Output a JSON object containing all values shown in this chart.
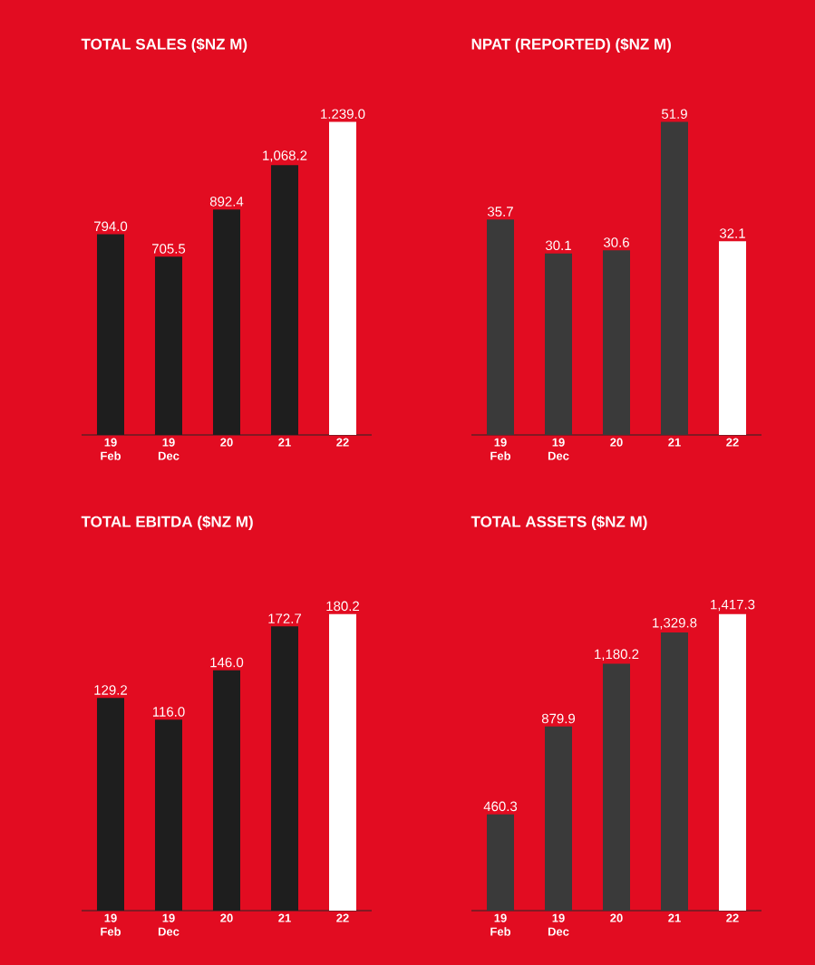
{
  "chart_data": [
    {
      "type": "bar",
      "title": "TOTAL SALES ($NZ M)",
      "categories": [
        "19 Feb",
        "19 Dec",
        "20",
        "21",
        "22"
      ],
      "values": [
        794.0,
        705.5,
        892.4,
        1068.2,
        1239.0
      ],
      "value_labels": [
        "794.0",
        "705.5",
        "892.4",
        "1,068.2",
        "1.239.0"
      ],
      "colors": [
        "#1e1e1e",
        "#1e1e1e",
        "#1e1e1e",
        "#1e1e1e",
        "#ffffff"
      ],
      "tick_labels": "x"
    },
    {
      "type": "bar",
      "title": "NPAT (REPORTED) ($NZ M)",
      "categories": [
        "19 Feb",
        "19 Dec",
        "20",
        "21",
        "22"
      ],
      "values": [
        35.7,
        30.1,
        30.6,
        51.9,
        32.1
      ],
      "value_labels": [
        "35.7",
        "30.1",
        "30.6",
        "51.9",
        "32.1"
      ],
      "colors": [
        "#3a3a3a",
        "#3a3a3a",
        "#3a3a3a",
        "#3a3a3a",
        "#ffffff"
      ],
      "tick_labels": "x"
    },
    {
      "type": "bar",
      "title": "TOTAL EBITDA ($NZ M)",
      "categories": [
        "19 Feb",
        "19 Dec",
        "20",
        "21",
        "22"
      ],
      "values": [
        129.2,
        116.0,
        146.0,
        172.7,
        180.2
      ],
      "value_labels": [
        "129.2",
        "116.0",
        "146.0",
        "172.7",
        "180.2"
      ],
      "colors": [
        "#1e1e1e",
        "#1e1e1e",
        "#1e1e1e",
        "#1e1e1e",
        "#ffffff"
      ],
      "tick_labels": "x"
    },
    {
      "type": "bar",
      "title": "TOTAL ASSETS ($NZ M)",
      "categories": [
        "19 Feb",
        "19 Dec",
        "20",
        "21",
        "22"
      ],
      "values": [
        460.3,
        879.9,
        1180.2,
        1329.8,
        1417.3
      ],
      "value_labels": [
        "460.3",
        "879.9",
        "1,180.2",
        "1,329.8",
        "1,417.3"
      ],
      "colors": [
        "#3a3a3a",
        "#3a3a3a",
        "#3a3a3a",
        "#3a3a3a",
        "#ffffff"
      ],
      "tick_labels": "x"
    }
  ]
}
